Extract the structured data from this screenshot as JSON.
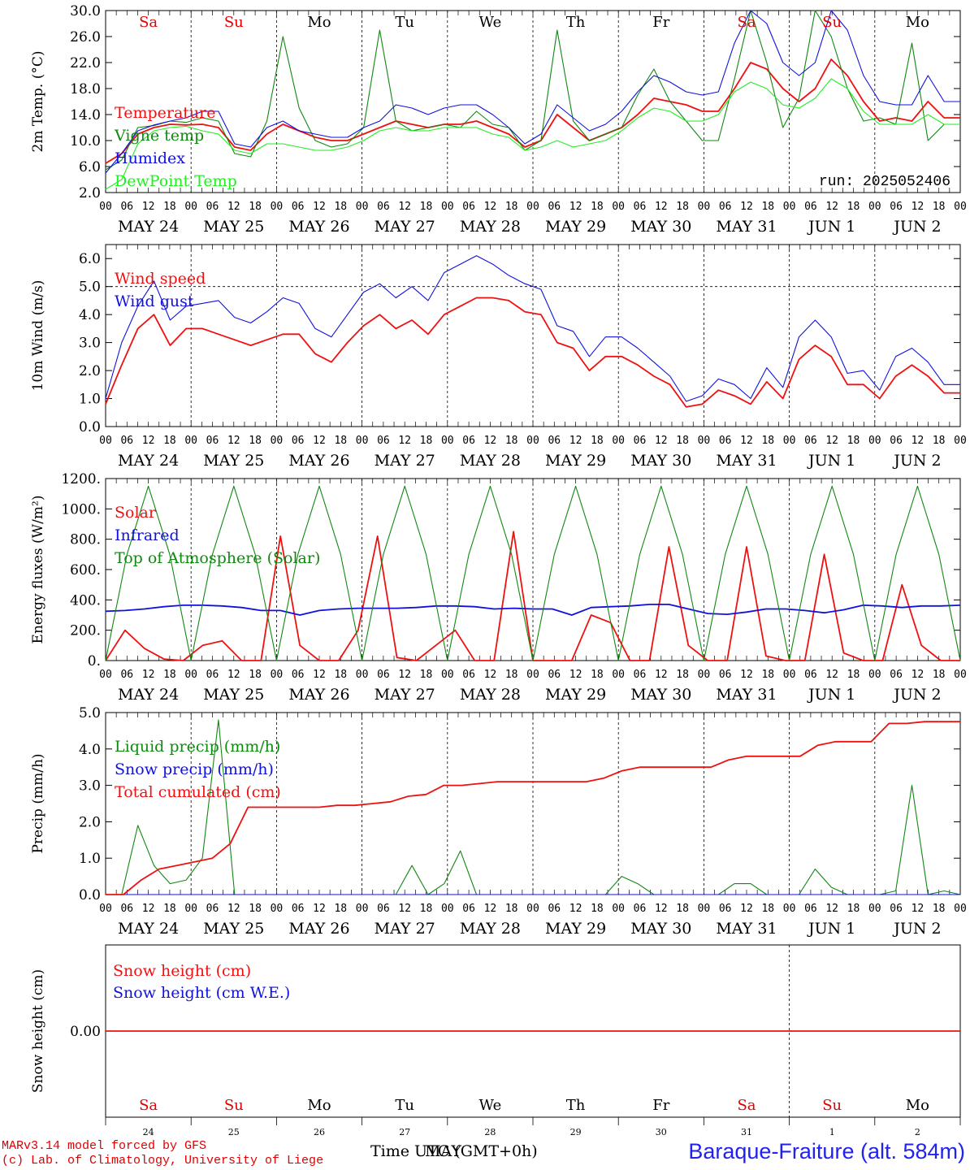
{
  "days": [
    "Sa",
    "Su",
    "Mo",
    "Tu",
    "We",
    "Th",
    "Fr",
    "Sa",
    "Su",
    "Mo"
  ],
  "day_colors": [
    "#e00000",
    "#e00000",
    "#000000",
    "#000000",
    "#000000",
    "#000000",
    "#000000",
    "#e00000",
    "#e00000",
    "#000000"
  ],
  "dates": [
    "MAY 24",
    "MAY 25",
    "MAY 26",
    "MAY 27",
    "MAY 28",
    "MAY 29",
    "MAY 30",
    "MAY 31",
    "JUN  1",
    "JUN  2"
  ],
  "hour_ticks": [
    "00",
    "06",
    "12",
    "18"
  ],
  "bottom_day_numbers": [
    "24",
    "25",
    "26",
    "27",
    "28",
    "29",
    "30",
    "31",
    "1",
    "2"
  ],
  "colors": {
    "red": "#ee1111",
    "green": "#118811",
    "blue": "#1111dd",
    "lightgreen": "#22ee22"
  },
  "footer": {
    "credit_line1": "MARv3.14 model forced by GFS",
    "credit_line2": "(c) Lab. of Climatology, University of Liege",
    "time_label": "Time UTC (GMT+0h)",
    "time_overlap": "MAY",
    "station": "Baraque-Fraiture (alt. 584m)"
  },
  "chart_data": [
    {
      "type": "line",
      "ylabel": "2m Temp. (°C)",
      "ylim": [
        2,
        30
      ],
      "yticks": [
        "2.0",
        "6.0",
        "10.0",
        "14.0",
        "18.0",
        "22.0",
        "26.0",
        "30.0"
      ],
      "annotation": "run: 2025052406",
      "x_start": "2025-05-24 00 UTC",
      "x_step_hours": 6,
      "series": [
        {
          "name": "Temperature",
          "color": "red",
          "values": [
            6.5,
            8,
            11,
            12,
            12.5,
            12.4,
            12.5,
            12,
            9,
            8.5,
            11,
            12.5,
            11.5,
            10.5,
            10,
            10,
            11,
            12,
            13,
            12.5,
            12,
            12.5,
            12.5,
            13,
            12,
            11,
            9,
            10,
            14,
            12,
            10,
            11,
            12,
            14,
            16.5,
            16,
            15.5,
            14.5,
            14.5,
            18,
            22,
            21,
            18,
            16,
            18,
            22.5,
            20,
            16,
            13,
            13.5,
            13,
            16,
            13.5,
            13.5
          ]
        },
        {
          "name": "Vigne temp",
          "color": "green",
          "values": [
            5.5,
            7,
            12,
            12.3,
            13,
            12.8,
            13.5,
            13,
            8,
            7.5,
            13,
            26,
            15,
            10,
            9,
            9.5,
            12,
            27,
            13,
            11.5,
            12,
            12.5,
            12,
            14.5,
            12.5,
            12,
            8.5,
            10,
            27,
            13,
            10,
            11,
            12,
            17,
            21,
            16,
            13,
            10,
            10,
            19.5,
            30,
            22,
            12,
            16.5,
            30,
            26,
            18,
            13,
            13.5,
            12.5,
            25,
            10,
            12.5,
            12.5
          ]
        },
        {
          "name": "Humidex",
          "color": "blue",
          "values": [
            5,
            8,
            11.5,
            12.4,
            13,
            13.5,
            14.5,
            14.5,
            9.5,
            9,
            12,
            13,
            11.5,
            11,
            10.5,
            10.5,
            12,
            13,
            15.5,
            15,
            14,
            15,
            15.5,
            15.5,
            14,
            12,
            9.5,
            11,
            15.5,
            13.5,
            11.5,
            12.5,
            14.5,
            17.5,
            20,
            19,
            17.5,
            17,
            17.5,
            25,
            30,
            28,
            22,
            20,
            22,
            30,
            27,
            20,
            16,
            15.5,
            15.5,
            20,
            16,
            16
          ]
        },
        {
          "name": "DewPoint Temp",
          "color": "lightgreen",
          "values": [
            2.5,
            4,
            9.5,
            11.5,
            12,
            12.2,
            11.5,
            11,
            8.5,
            8,
            9.5,
            9.5,
            9,
            8.5,
            8.5,
            9,
            10,
            11.5,
            12,
            11.5,
            11.5,
            12,
            12,
            12,
            11,
            10.5,
            8.5,
            9,
            10,
            9,
            9.5,
            10,
            11.5,
            13.5,
            15,
            14.5,
            13,
            13,
            14,
            17.5,
            19,
            18,
            15.5,
            15,
            16.5,
            19.5,
            18,
            14.5,
            12.5,
            12.5,
            12.5,
            14,
            12.5,
            12.5
          ]
        }
      ]
    },
    {
      "type": "line",
      "ylabel": "10m Wind (m/s)",
      "ylim": [
        0,
        6.5
      ],
      "yticks": [
        "0.0",
        "1.0",
        "2.0",
        "3.0",
        "4.0",
        "5.0",
        "6.0"
      ],
      "reference_line": 5,
      "x_start": "2025-05-24 00 UTC",
      "x_step_hours": 6,
      "series": [
        {
          "name": "Wind speed",
          "color": "red",
          "values": [
            0.8,
            2.2,
            3.5,
            4,
            2.9,
            3.5,
            3.5,
            3.3,
            3.1,
            2.9,
            3.1,
            3.3,
            3.3,
            2.6,
            2.3,
            3,
            3.6,
            4,
            3.5,
            3.8,
            3.3,
            4,
            4.3,
            4.6,
            4.6,
            4.5,
            4.1,
            4,
            3,
            2.8,
            2,
            2.5,
            2.5,
            2.2,
            1.8,
            1.5,
            0.7,
            0.8,
            1.3,
            1.1,
            0.8,
            1.6,
            1,
            2.4,
            2.9,
            2.5,
            1.5,
            1.5,
            1,
            1.8,
            2.2,
            1.8,
            1.2,
            1.2
          ]
        },
        {
          "name": "Wind gust",
          "color": "blue",
          "values": [
            1,
            3,
            4.3,
            5.2,
            3.8,
            4.3,
            4.4,
            4.5,
            3.9,
            3.7,
            4.1,
            4.6,
            4.4,
            3.5,
            3.2,
            4,
            4.8,
            5.1,
            4.6,
            5,
            4.5,
            5.5,
            5.8,
            6.1,
            5.8,
            5.4,
            5.1,
            4.9,
            3.6,
            3.4,
            2.5,
            3.2,
            3.2,
            2.8,
            2.3,
            1.8,
            0.9,
            1.1,
            1.7,
            1.5,
            1,
            2.1,
            1.4,
            3.2,
            3.8,
            3.2,
            1.9,
            2,
            1.3,
            2.5,
            2.8,
            2.3,
            1.5,
            1.5
          ]
        }
      ]
    },
    {
      "type": "line",
      "ylabel": "Energy fluxes (W/m²)",
      "ylim": [
        0,
        1200
      ],
      "yticks": [
        "0.",
        "200.",
        "400.",
        "600.",
        "800.",
        "1000.",
        "1200."
      ],
      "x_start": "2025-05-24 00 UTC",
      "x_step_hours": 6,
      "series": [
        {
          "name": "Solar",
          "color": "red",
          "values": [
            0,
            200,
            80,
            10,
            0,
            100,
            130,
            0,
            0,
            820,
            100,
            0,
            0,
            200,
            820,
            20,
            0,
            100,
            200,
            0,
            0,
            850,
            0,
            0,
            0,
            300,
            250,
            0,
            0,
            750,
            100,
            0,
            0,
            750,
            30,
            0,
            0,
            700,
            50,
            0,
            0,
            500,
            100,
            0,
            0
          ]
        },
        {
          "name": "Infrared",
          "color": "blue",
          "values": [
            325,
            330,
            340,
            355,
            365,
            365,
            360,
            350,
            330,
            330,
            300,
            330,
            340,
            345,
            345,
            345,
            350,
            360,
            360,
            355,
            340,
            345,
            340,
            340,
            300,
            350,
            355,
            360,
            370,
            370,
            340,
            310,
            305,
            320,
            340,
            340,
            330,
            315,
            335,
            365,
            360,
            350,
            360,
            360,
            365
          ]
        },
        {
          "name": "Top of Atmosphere (Solar)",
          "color": "green",
          "values": [
            0,
            700,
            1150,
            700,
            0,
            700,
            1150,
            700,
            0,
            700,
            1150,
            700,
            0,
            700,
            1150,
            700,
            0,
            700,
            1150,
            700,
            0,
            700,
            1150,
            700,
            0,
            700,
            1150,
            700,
            0,
            700,
            1150,
            700,
            0,
            700,
            1150,
            700,
            0,
            700,
            1150,
            700,
            0
          ]
        }
      ]
    },
    {
      "type": "line",
      "ylabel": "Precip (mm/h)",
      "ylim": [
        0,
        5
      ],
      "yticks": [
        "0.0",
        "1.0",
        "2.0",
        "3.0",
        "4.0",
        "5.0"
      ],
      "x_start": "2025-05-24 00 UTC",
      "x_step_hours": 6,
      "series": [
        {
          "name": "Liquid precip (mm/h)",
          "color": "green",
          "values": [
            0,
            0,
            1.9,
            0.8,
            0.3,
            0.4,
            1,
            4.8,
            0,
            0,
            0,
            0,
            0,
            0,
            0,
            0,
            0,
            0,
            0,
            0.8,
            0,
            0.3,
            1.2,
            0,
            0,
            0,
            0,
            0,
            0,
            0,
            0,
            0,
            0.5,
            0.3,
            0,
            0,
            0,
            0,
            0,
            0.3,
            0.3,
            0,
            0,
            0,
            0.7,
            0.2,
            0,
            0,
            0,
            0.1,
            3,
            0,
            0.1,
            0
          ]
        },
        {
          "name": "Snow precip (mm/h)",
          "color": "blue",
          "values": [
            0,
            0,
            0,
            0,
            0,
            0,
            0,
            0,
            0,
            0,
            0,
            0,
            0,
            0,
            0,
            0,
            0,
            0,
            0,
            0,
            0,
            0,
            0,
            0,
            0,
            0,
            0,
            0,
            0,
            0,
            0,
            0,
            0,
            0,
            0,
            0,
            0,
            0,
            0,
            0,
            0,
            0,
            0,
            0,
            0,
            0,
            0,
            0,
            0,
            0,
            0,
            0,
            0,
            0
          ]
        },
        {
          "name": "Total cumulated (cm)",
          "color": "red",
          "values": [
            0,
            0,
            0.4,
            0.7,
            0.8,
            0.9,
            1,
            1.4,
            2.4,
            2.4,
            2.4,
            2.4,
            2.4,
            2.45,
            2.45,
            2.5,
            2.55,
            2.7,
            2.75,
            3.0,
            3.0,
            3.05,
            3.1,
            3.1,
            3.1,
            3.1,
            3.1,
            3.1,
            3.2,
            3.4,
            3.5,
            3.5,
            3.5,
            3.5,
            3.5,
            3.7,
            3.8,
            3.8,
            3.8,
            3.8,
            4.1,
            4.2,
            4.2,
            4.2,
            4.7,
            4.7,
            4.75,
            4.75,
            4.75
          ]
        }
      ]
    },
    {
      "type": "line",
      "ylabel": "Snow height (cm)",
      "ylim": [
        -1,
        1
      ],
      "yticks": [
        "0.00"
      ],
      "x_start": "2025-05-24 00 UTC",
      "x_step_hours": 6,
      "series": [
        {
          "name": "Snow height (cm)",
          "color": "red",
          "values": [
            0,
            0,
            0,
            0,
            0,
            0,
            0,
            0,
            0,
            0,
            0,
            0,
            0,
            0,
            0,
            0,
            0,
            0,
            0,
            0,
            0,
            0,
            0,
            0,
            0,
            0,
            0,
            0,
            0,
            0,
            0,
            0,
            0,
            0,
            0,
            0,
            0,
            0,
            0,
            0,
            0
          ]
        },
        {
          "name": "Snow height (cm W.E.)",
          "color": "blue",
          "values": []
        }
      ]
    }
  ]
}
